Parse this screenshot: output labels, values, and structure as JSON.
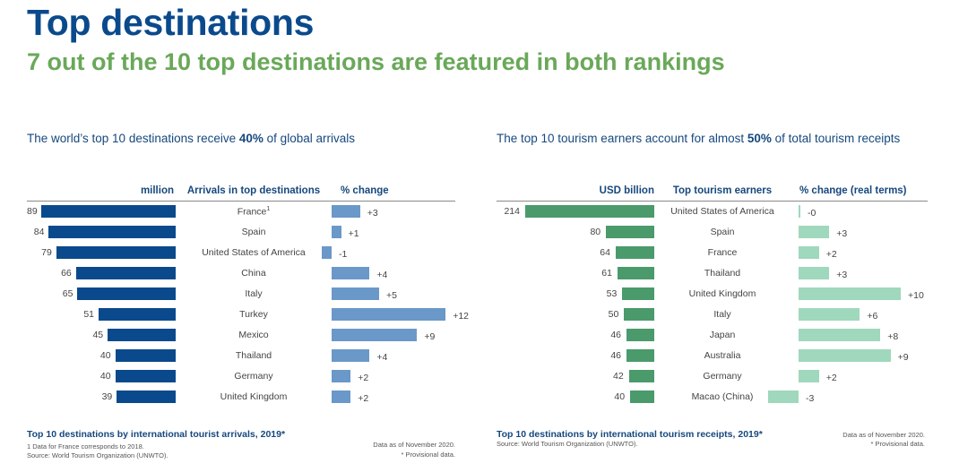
{
  "title": "Top destinations",
  "subtitle": "7 out of the 10 top destinations are featured in both rankings",
  "colors": {
    "title": "#0a4a8c",
    "subtitle": "#6aa85a",
    "arrivals_bar": "#0a4a8c",
    "arrivals_change_bar": "#6a98c8",
    "receipts_bar": "#4a9a6c",
    "receipts_change_bar": "#9fd8bc"
  },
  "chart_data": [
    {
      "type": "bar",
      "caption_pre": "The world’s top 10 destinations receive ",
      "caption_bold": "40%",
      "caption_post": " of global arrivals",
      "headers": {
        "value": "million",
        "name": "Arrivals in top destinations",
        "change": "% change"
      },
      "categories": [
        "France",
        "Spain",
        "United States of America",
        "China",
        "Italy",
        "Turkey",
        "Mexico",
        "Thailand",
        "Germany",
        "United Kingdom"
      ],
      "superscripts": [
        "1",
        "",
        "",
        "",
        "",
        "",
        "",
        "",
        "",
        ""
      ],
      "values": [
        89,
        84,
        79,
        66,
        65,
        51,
        45,
        40,
        40,
        39
      ],
      "change": [
        3,
        1,
        -1,
        4,
        5,
        12,
        9,
        4,
        2,
        2
      ],
      "change_labels": [
        "+3",
        "+1",
        "-1",
        "+4",
        "+5",
        "+12",
        "+9",
        "+4",
        "+2",
        "+2"
      ],
      "footer": "Top 10 destinations by international tourist arrivals, 2019*",
      "notes": [
        "1     Data for France corresponds to 2018.",
        "Source: World Tourism Organization (UNWTO)."
      ],
      "notes_right": [
        "Data as of November 2020.",
        "* Provisional data."
      ]
    },
    {
      "type": "bar",
      "caption_pre": "The top 10 tourism earners account for almost ",
      "caption_bold": "50%",
      "caption_post": " of total tourism receipts",
      "headers": {
        "value": "USD billion",
        "name": "Top tourism earners",
        "change": "% change (real terms)"
      },
      "categories": [
        "United States of America",
        "Spain",
        "France",
        "Thailand",
        "United Kingdom",
        "Italy",
        "Japan",
        "Australia",
        "Germany",
        "Macao (China)"
      ],
      "superscripts": [
        "",
        "",
        "",
        "",
        "",
        "",
        "",
        "",
        "",
        ""
      ],
      "values": [
        214,
        80,
        64,
        61,
        53,
        50,
        46,
        46,
        42,
        40
      ],
      "change": [
        0,
        3,
        2,
        3,
        10,
        6,
        8,
        9,
        2,
        -3
      ],
      "change_labels": [
        "-0",
        "+3",
        "+2",
        "+3",
        "+10",
        "+6",
        "+8",
        "+9",
        "+2",
        "-3"
      ],
      "footer": "Top 10 destinations by international tourism receipts, 2019*",
      "notes": [
        "Source: World Tourism Organization (UNWTO)."
      ],
      "notes_right": [
        "Data as of November 2020.",
        "* Provisional data."
      ]
    }
  ]
}
